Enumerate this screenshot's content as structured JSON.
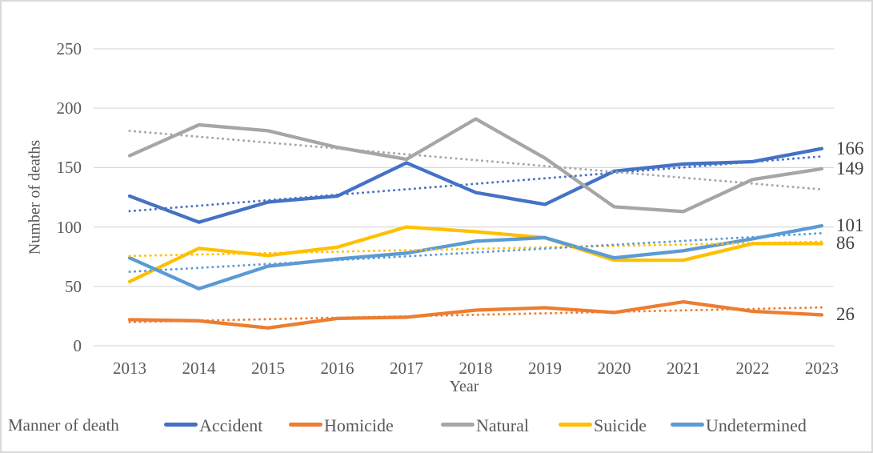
{
  "frame": {
    "background_color": "#FFFFFF",
    "border_color": "#D9D9D9",
    "gridline_color": "#D9D9D9",
    "tick_text_color": "#595959",
    "end_label_color": "#424242"
  },
  "y_axis": {
    "title": "Number of deaths",
    "ticks": [
      250,
      200,
      150,
      100,
      50,
      0
    ]
  },
  "x_axis": {
    "title": "Year",
    "ticks": [
      2013,
      2014,
      2015,
      2016,
      2017,
      2018,
      2019,
      2020,
      2021,
      2022,
      2023
    ]
  },
  "legend": {
    "title": "Manner of death",
    "entries": [
      "Accident",
      "Homicide",
      "Natural",
      "Suicide",
      "Undetermined"
    ]
  },
  "chart_data": {
    "type": "line",
    "title": "",
    "xlabel": "Year",
    "ylabel": "Number of deaths",
    "ylim": [
      0,
      250
    ],
    "grid": true,
    "legend_position": "bottom",
    "x": [
      2013,
      2014,
      2015,
      2016,
      2017,
      2018,
      2019,
      2020,
      2021,
      2022,
      2023
    ],
    "series": [
      {
        "name": "Accident",
        "color": "#4472C4",
        "values": [
          126,
          104,
          121,
          126,
          154,
          129,
          119,
          147,
          153,
          155,
          166
        ],
        "end_label": "166",
        "trendline": "linear-dotted"
      },
      {
        "name": "Homicide",
        "color": "#ED7D31",
        "values": [
          22,
          21,
          15,
          23,
          24,
          30,
          32,
          28,
          37,
          29,
          26
        ],
        "end_label": "26",
        "trendline": "linear-dotted"
      },
      {
        "name": "Natural",
        "color": "#A6A6A6",
        "values": [
          160,
          186,
          181,
          167,
          157,
          191,
          158,
          117,
          113,
          140,
          149
        ],
        "end_label": "149",
        "trendline": "linear-dotted"
      },
      {
        "name": "Suicide",
        "color": "#FFC000",
        "values": [
          54,
          82,
          76,
          83,
          100,
          96,
          91,
          72,
          72,
          86,
          86
        ],
        "end_label": "86",
        "trendline": "linear-dotted"
      },
      {
        "name": "Undetermined",
        "color": "#5B9BD5",
        "values": [
          74,
          48,
          67,
          73,
          78,
          88,
          91,
          74,
          80,
          90,
          101
        ],
        "end_label": "101",
        "trendline": "linear-dotted"
      }
    ]
  }
}
